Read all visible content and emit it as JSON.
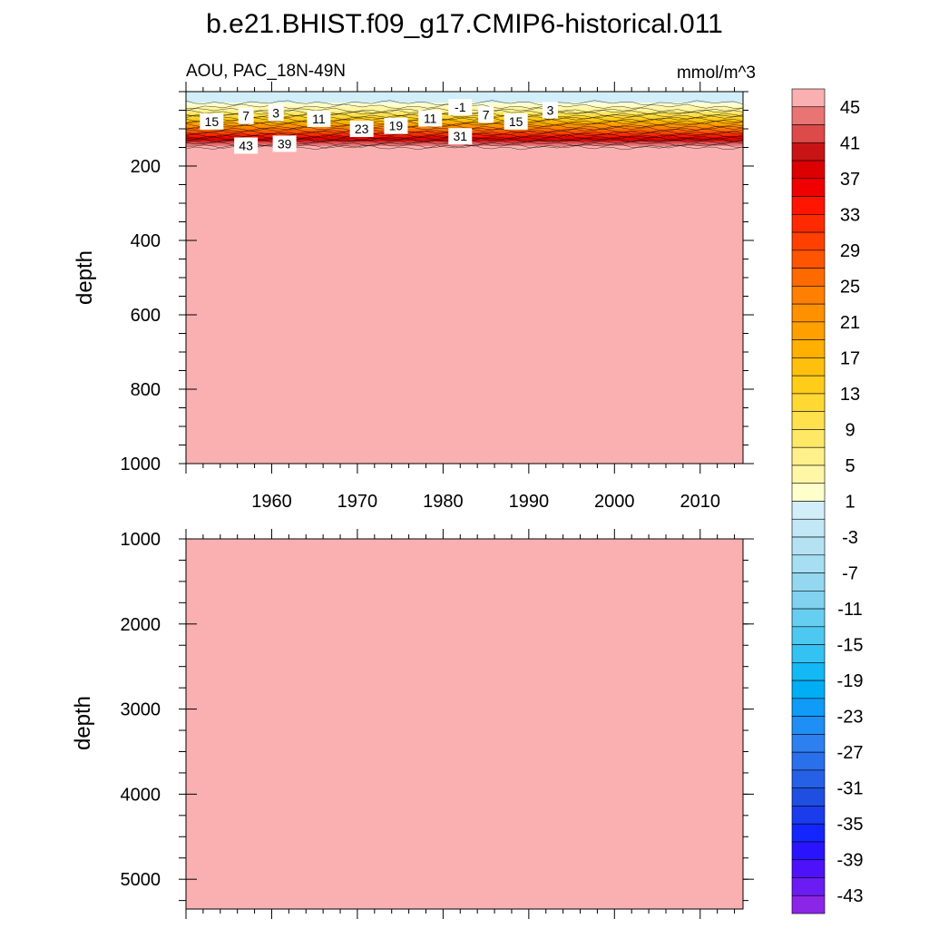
{
  "chart_data": {
    "type": "heatmap",
    "title": "b.e21.BHIST.f09_g17.CMIP6-historical.011",
    "subtitle_left": "AOU, PAC_18N-49N",
    "subtitle_right": "mmol/m^3",
    "xlabel": "",
    "xlim": [
      1950,
      2015
    ],
    "x_ticks": [
      "1960",
      "1970",
      "1980",
      "1990",
      "2000",
      "2010"
    ],
    "x_tick_values": [
      1960,
      1970,
      1980,
      1990,
      2000,
      2010
    ],
    "panels": [
      {
        "ylabel": "depth",
        "ylim": [
          0,
          1000
        ],
        "y_ticks": [
          "200",
          "400",
          "600",
          "800",
          "1000"
        ],
        "y_tick_values": [
          200,
          400,
          600,
          800,
          1000
        ],
        "profile": [
          {
            "depth": 0,
            "value": -3
          },
          {
            "depth": 30,
            "value": -1
          },
          {
            "depth": 40,
            "value": 1
          },
          {
            "depth": 50,
            "value": 3
          },
          {
            "depth": 60,
            "value": 7
          },
          {
            "depth": 70,
            "value": 11
          },
          {
            "depth": 80,
            "value": 15
          },
          {
            "depth": 90,
            "value": 19
          },
          {
            "depth": 100,
            "value": 23
          },
          {
            "depth": 110,
            "value": 27
          },
          {
            "depth": 118,
            "value": 31
          },
          {
            "depth": 126,
            "value": 35
          },
          {
            "depth": 134,
            "value": 39
          },
          {
            "depth": 140,
            "value": 41
          },
          {
            "depth": 146,
            "value": 43
          },
          {
            "depth": 152,
            "value": 46
          },
          {
            "depth": 1000,
            "value": 46
          }
        ],
        "contour_labels": [
          {
            "text": "15",
            "x": 1953.0,
            "depth": 80
          },
          {
            "text": "7",
            "x": 1957.0,
            "depth": 65
          },
          {
            "text": "3",
            "x": 1960.5,
            "depth": 57
          },
          {
            "text": "11",
            "x": 1965.5,
            "depth": 73
          },
          {
            "text": "43",
            "x": 1957.0,
            "depth": 145
          },
          {
            "text": "39",
            "x": 1961.5,
            "depth": 140
          },
          {
            "text": "23",
            "x": 1970.5,
            "depth": 100
          },
          {
            "text": "19",
            "x": 1974.5,
            "depth": 92
          },
          {
            "text": "11",
            "x": 1978.5,
            "depth": 72
          },
          {
            "text": "-1",
            "x": 1982.0,
            "depth": 42
          },
          {
            "text": "31",
            "x": 1982.0,
            "depth": 120
          },
          {
            "text": "7",
            "x": 1985.0,
            "depth": 62
          },
          {
            "text": "15",
            "x": 1988.5,
            "depth": 80
          },
          {
            "text": "3",
            "x": 1992.5,
            "depth": 50
          }
        ]
      },
      {
        "ylabel": "depth",
        "ylim": [
          1000,
          5350
        ],
        "y_ticks": [
          "1000",
          "2000",
          "3000",
          "4000",
          "5000"
        ],
        "y_tick_values": [
          1000,
          2000,
          3000,
          4000,
          5000
        ],
        "profile": [
          {
            "depth": 1000,
            "value": 46
          },
          {
            "depth": 5350,
            "value": 46
          }
        ],
        "contour_labels": []
      }
    ],
    "colorbar": {
      "labels": [
        "45",
        "41",
        "37",
        "33",
        "29",
        "25",
        "21",
        "17",
        "13",
        "9",
        "5",
        "1",
        "-3",
        "-7",
        "-11",
        "-15",
        "-19",
        "-23",
        "-27",
        "-31",
        "-35",
        "-39",
        "-43"
      ],
      "levels_min": -45,
      "levels_max": 45,
      "levels_step": 2,
      "colors": [
        "#8c26e6",
        "#6b1cf2",
        "#4d12fa",
        "#2a14ff",
        "#1426ff",
        "#1a3ced",
        "#1f4fe0",
        "#2560e6",
        "#2a70eb",
        "#2e80f0",
        "#1f8ef5",
        "#0f9bf7",
        "#00aef5",
        "#14b8f5",
        "#33c2f2",
        "#4dc8f0",
        "#66cef0",
        "#80d2ef",
        "#93d8f0",
        "#a6def2",
        "#b4e2f3",
        "#c2e8f5",
        "#d2eef8",
        "#ffffcc",
        "#fff7a6",
        "#fff08c",
        "#ffe866",
        "#ffe04d",
        "#ffd833",
        "#ffcc1a",
        "#ffbf0d",
        "#ffb000",
        "#ffa000",
        "#ff9000",
        "#ff7f00",
        "#ff6a00",
        "#ff5500",
        "#ff4000",
        "#ff2a00",
        "#ff1500",
        "#f00000",
        "#dc0000",
        "#c81414",
        "#dc4a4a",
        "#e87474",
        "#fab0b0"
      ]
    }
  }
}
